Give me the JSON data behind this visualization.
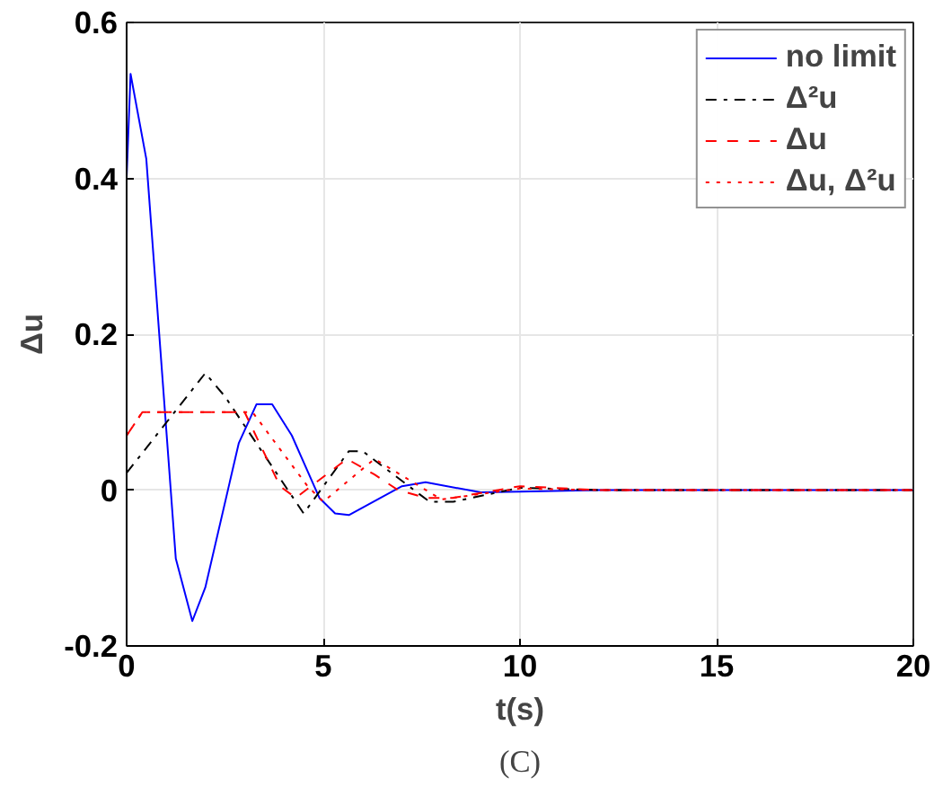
{
  "chart_data": {
    "type": "line",
    "xlabel": "t(s)",
    "ylabel": "Δu",
    "annotations": [
      "(C)"
    ],
    "xlim": [
      0,
      20
    ],
    "ylim": [
      -0.2,
      0.6
    ],
    "xticks": [
      0,
      5,
      10,
      15,
      20
    ],
    "yticks": [
      -0.2,
      0,
      0.2,
      0.4,
      0.6
    ],
    "grid": true,
    "legend": "top right",
    "series": [
      {
        "name": "no limit",
        "color": "#0000ff",
        "line_style": "solid",
        "x": [
          0,
          0.1,
          0.5,
          1.25,
          1.67,
          2.0,
          2.85,
          3.3,
          3.7,
          4.2,
          4.9,
          5.3,
          5.65,
          7.0,
          7.6,
          9,
          10,
          12,
          15,
          20
        ],
        "values": [
          0.4,
          0.534,
          0.425,
          -0.088,
          -0.168,
          -0.125,
          0.06,
          0.11,
          0.11,
          0.07,
          -0.01,
          -0.03,
          -0.032,
          0.005,
          0.01,
          -0.003,
          -0.002,
          0,
          0,
          0
        ]
      },
      {
        "name": "Δ²u",
        "color": "#000000",
        "line_style": "dashdot",
        "x": [
          0,
          2,
          2.5,
          4.5,
          5.65,
          6,
          7.7,
          8.3,
          10,
          12,
          15,
          20
        ],
        "values": [
          0.022,
          0.15,
          0.12,
          -0.03,
          0.05,
          0.05,
          -0.015,
          -0.015,
          0.003,
          0,
          0,
          0
        ]
      },
      {
        "name": "Δu",
        "color": "#ff0000",
        "line_style": "dashed",
        "x": [
          0,
          0.4,
          3.0,
          3.9,
          4.3,
          5.6,
          6.3,
          6.9,
          7.6,
          8.3,
          10,
          12,
          15,
          20
        ],
        "values": [
          0.07,
          0.1,
          0.1,
          0.005,
          -0.01,
          0.04,
          0.02,
          0,
          -0.01,
          -0.01,
          0.005,
          0,
          0,
          0
        ]
      },
      {
        "name": "Δu, Δ²u",
        "color": "#ff0000",
        "line_style": "dotted",
        "x": [
          0,
          0.4,
          3.2,
          4.6,
          5.0,
          6.3,
          8.0,
          10,
          12,
          15,
          20
        ],
        "values": [
          0.07,
          0.1,
          0.1,
          0.005,
          -0.015,
          0.04,
          -0.012,
          0.002,
          0,
          0,
          0
        ]
      }
    ]
  }
}
